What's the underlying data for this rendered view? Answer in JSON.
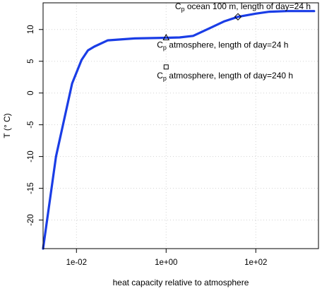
{
  "chart_data": {
    "type": "line",
    "xlabel": "heat capacity relative to atmosphere",
    "ylabel": "T (° C)",
    "x_scale": "log",
    "xlim": [
      0.0018,
      2500
    ],
    "ylim": [
      -24.5,
      14.2
    ],
    "x_ticks": [
      {
        "value": 0.01,
        "label": "1e-02"
      },
      {
        "value": 1,
        "label": "1e+00"
      },
      {
        "value": 100,
        "label": "1e+02"
      }
    ],
    "y_ticks": [
      -20,
      -15,
      -10,
      -5,
      0,
      5,
      10
    ],
    "grid": true,
    "series": [
      {
        "color": "#1a3de6",
        "x": [
          0.0018,
          0.0035,
          0.008,
          0.013,
          0.018,
          0.025,
          0.05,
          0.2,
          1,
          2,
          4,
          10,
          20,
          40,
          100,
          200,
          500,
          2000
        ],
        "y": [
          -24.5,
          -10,
          1.5,
          5.2,
          6.7,
          7.3,
          8.3,
          8.6,
          8.7,
          8.75,
          9.0,
          10.3,
          11.3,
          12.0,
          12.5,
          12.8,
          12.9,
          12.9
        ]
      }
    ],
    "annotations": [
      {
        "x": 40,
        "y": 12.0,
        "marker": "diamond",
        "symbol": "C",
        "subscript": "p",
        "text": "ocean 100 m, length of day=24 h"
      },
      {
        "x": 1,
        "y": 8.7,
        "marker": "triangle",
        "symbol": "C",
        "subscript": "p",
        "text": "atmosphere, length of day=24 h"
      },
      {
        "x": 1,
        "y": 4.1,
        "marker": "square",
        "symbol": "C",
        "subscript": "p",
        "text": "atmosphere, length of day=240 h"
      }
    ]
  }
}
